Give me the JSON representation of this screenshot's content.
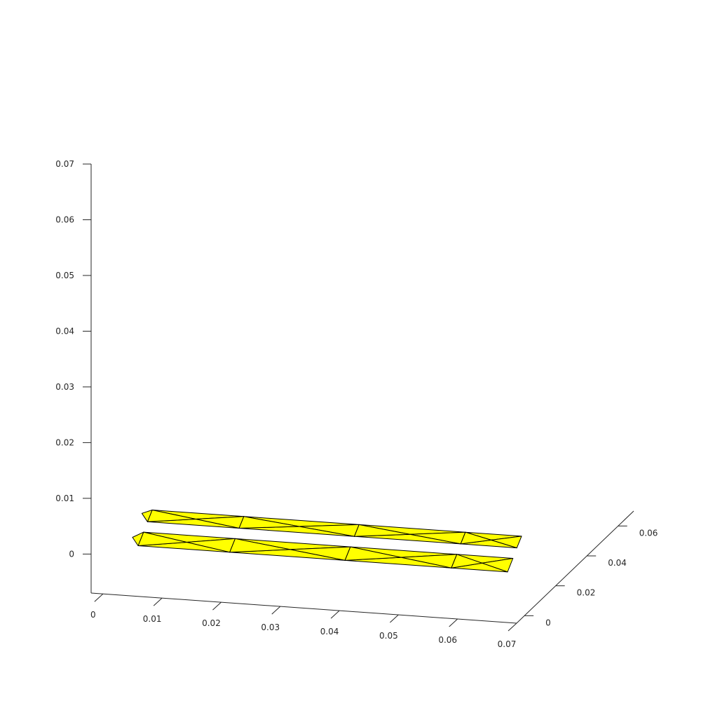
{
  "chart_data": {
    "type": "3d-surface-mesh",
    "title": "",
    "xlabel": "",
    "ylabel": "",
    "zlabel": "",
    "grid": false,
    "face_color": "#ffff00",
    "edge_color": "#000000",
    "background": "#ffffff",
    "xlim": [
      -0.002,
      0.07
    ],
    "ylim": [
      -0.005,
      0.07
    ],
    "zlim": [
      -0.007,
      0.07
    ],
    "x_ticks": [
      "0",
      "0.01",
      "0.02",
      "0.03",
      "0.04",
      "0.05",
      "0.06",
      "0.07"
    ],
    "y_ticks": [
      "0",
      "0.02",
      "0.04",
      "0.06"
    ],
    "z_ticks": [
      "0",
      "0.01",
      "0.02",
      "0.03",
      "0.04",
      "0.05",
      "0.06",
      "0.07"
    ],
    "layers": [
      {
        "name": "",
        "z_thickness": 0.001,
        "x_nodes": [
          0.0045,
          0.02,
          0.0395,
          0.0575,
          0.067
        ],
        "points": [
          {
            "x": 0.005,
            "y": 0.0065
          },
          {
            "x": 0.01,
            "y": 0.0085
          },
          {
            "x": 0.023,
            "y": 0.0035
          },
          {
            "x": 0.026,
            "y": 0.008
          },
          {
            "x": 0.041,
            "y": 0.003
          },
          {
            "x": 0.042,
            "y": 0.008
          },
          {
            "x": 0.058,
            "y": 0.0045
          },
          {
            "x": 0.062,
            "y": 0.007
          },
          {
            "x": 0.066,
            "y": 0.009
          }
        ]
      },
      {
        "name": "",
        "z_thickness": 0.001,
        "x_nodes": [
          0.0045,
          0.02,
          0.0395,
          0.0575,
          0.067
        ],
        "points": [
          {
            "x": 0.005,
            "y": 0.0035
          },
          {
            "x": 0.011,
            "y": 0.002
          },
          {
            "x": 0.024,
            "y": 0.001
          },
          {
            "x": 0.042,
            "y": 0.0015
          },
          {
            "x": 0.058,
            "y": 0.001
          },
          {
            "x": 0.064,
            "y": 0.0005
          },
          {
            "x": 0.067,
            "y": 0.003
          }
        ]
      }
    ]
  }
}
